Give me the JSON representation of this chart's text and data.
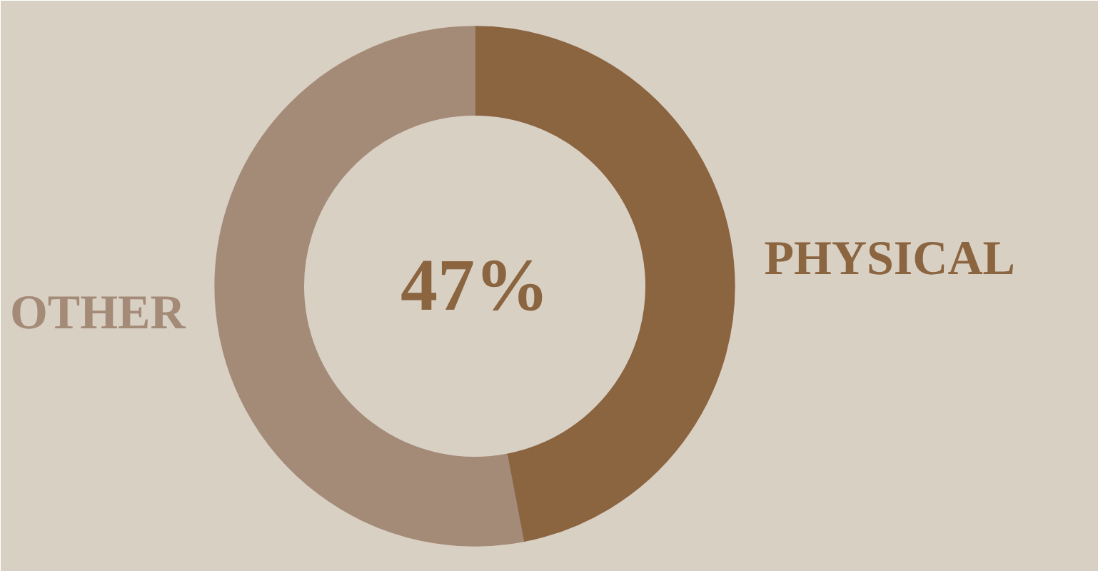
{
  "chart_data": {
    "type": "donut",
    "categories": [
      "PHYSICAL",
      "OTHER"
    ],
    "values": [
      47,
      53
    ],
    "colors": [
      "#8b6440",
      "#a48b78"
    ],
    "annotations": [
      "47%"
    ]
  }
}
